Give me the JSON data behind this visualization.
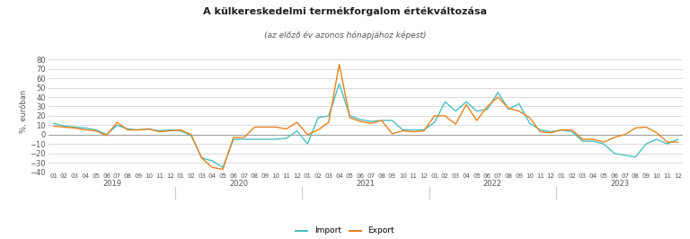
{
  "title": "A külkereskedelmi termékforgalom értékváltozása",
  "subtitle": "(az előző év azonos hónapjához képest)",
  "ylabel": "%, euróban",
  "ylim": [
    -40,
    90
  ],
  "yticks": [
    -40,
    -30,
    -20,
    -10,
    0,
    10,
    20,
    30,
    40,
    50,
    60,
    70,
    80
  ],
  "import_color": "#4BBFBF",
  "export_color": "#E8821E",
  "background_color": "#FFFFFF",
  "grid_color": "#CCCCCC",
  "years": [
    2019,
    2020,
    2021,
    2022,
    2023
  ],
  "import_values": [
    12,
    9,
    8,
    7,
    5,
    0,
    10,
    6,
    5,
    6,
    4,
    5,
    4,
    -1,
    -25,
    -28,
    -35,
    -5,
    -5,
    -5,
    -5,
    -5,
    -4,
    4,
    -10,
    18,
    20,
    54,
    20,
    16,
    14,
    15,
    15,
    5,
    5,
    5,
    13,
    35,
    25,
    35,
    25,
    27,
    45,
    27,
    33,
    12,
    5,
    3,
    5,
    3,
    -7,
    -7,
    -10,
    -20,
    -22,
    -24,
    -10,
    -5,
    -10,
    -5
  ],
  "export_values": [
    9,
    8,
    7,
    5,
    4,
    -1,
    13,
    5,
    5,
    6,
    3,
    4,
    5,
    0,
    -25,
    -35,
    -37,
    -3,
    -3,
    8,
    8,
    8,
    6,
    13,
    0,
    5,
    13,
    75,
    18,
    14,
    12,
    15,
    1,
    4,
    3,
    4,
    20,
    20,
    11,
    32,
    15,
    30,
    40,
    28,
    25,
    18,
    3,
    2,
    5,
    5,
    -5,
    -5,
    -8,
    -3,
    0,
    7,
    8,
    2,
    -8,
    -8
  ],
  "legend_import": "Import",
  "legend_export": "Export"
}
